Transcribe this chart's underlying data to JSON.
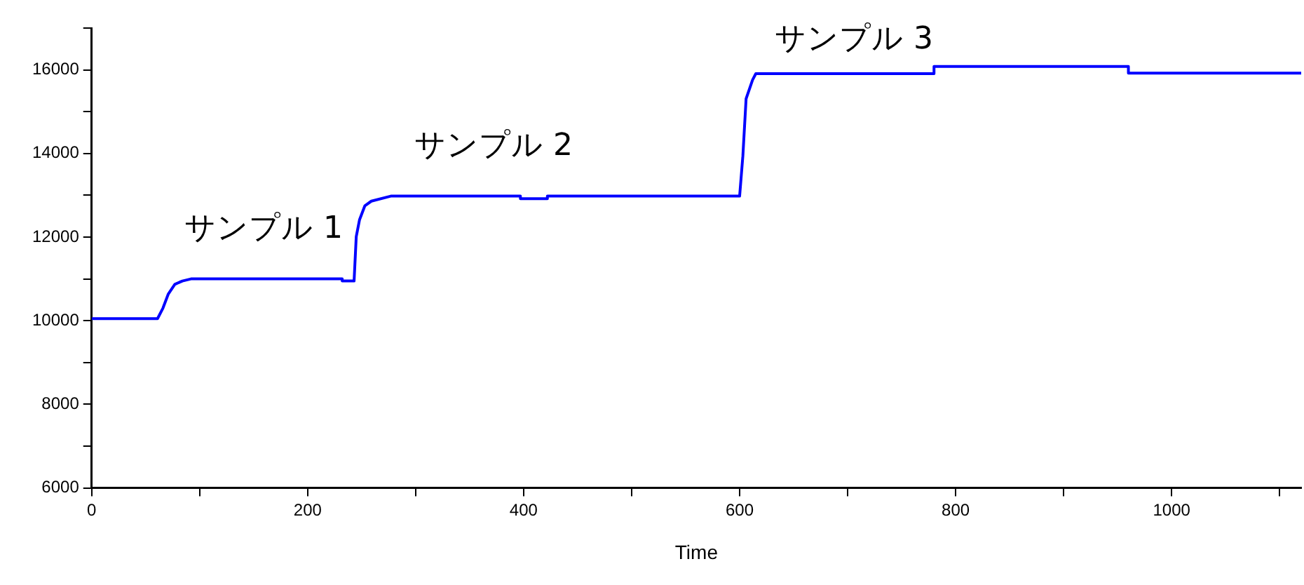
{
  "chart_data": {
    "type": "line",
    "xlabel": "Time",
    "x": [
      0,
      61,
      66,
      71,
      77,
      84,
      92,
      232,
      232,
      243,
      245,
      248,
      253,
      259,
      277,
      397,
      397,
      422,
      422,
      600,
      603,
      606,
      612,
      615,
      780,
      780,
      960,
      960,
      1120
    ],
    "series": [
      {
        "color": "#0000ff",
        "values": [
          10050,
          10050,
          10300,
          10640,
          10870,
          10950,
          11000,
          11000,
          10950,
          10950,
          12010,
          12410,
          12750,
          12860,
          12980,
          12980,
          12920,
          12920,
          12980,
          12980,
          13940,
          15310,
          15760,
          15910,
          15910,
          16080,
          16080,
          15920,
          15920
        ]
      }
    ],
    "xlim": [
      0,
      1120
    ],
    "xticks": [
      0,
      {
        "value": 100,
        "label": null
      },
      200,
      {
        "value": 300,
        "label": null
      },
      400,
      {
        "value": 500,
        "label": null
      },
      600,
      {
        "value": 700,
        "label": null
      },
      800,
      {
        "value": 900,
        "label": null
      },
      1000,
      {
        "value": 1100,
        "label": null
      }
    ],
    "ylim": [
      6000,
      17000
    ],
    "yticks": [
      6000,
      {
        "value": 7000,
        "label": null
      },
      8000,
      {
        "value": 9000,
        "label": null
      },
      10000,
      {
        "value": 11000,
        "label": null
      },
      12000,
      {
        "value": 13000,
        "label": null
      },
      14000,
      {
        "value": 15000,
        "label": null
      },
      16000,
      {
        "value": 17000,
        "label": null
      }
    ],
    "annotations": [
      "サンプル 1",
      "サンプル 2",
      "サンプル 3"
    ],
    "grid": false,
    "legend": false,
    "marker": "none",
    "line_style": "solid"
  }
}
